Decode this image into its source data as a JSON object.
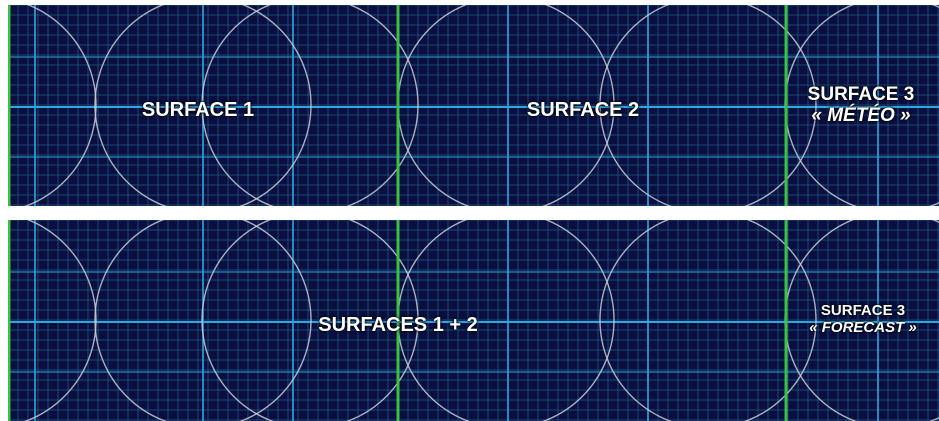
{
  "top_panel": {
    "labels": {
      "surface_1": "SURFACE 1",
      "surface_2": "SURFACE 2",
      "surface_3": "SURFACE 3",
      "surface_3_sub": "« MÉTÉO »"
    }
  },
  "bottom_panel": {
    "labels": {
      "surfaces_1_2": "SURFACES 1 + 2",
      "surface_3": "SURFACE 3",
      "surface_3_sub": "« FORECAST »"
    }
  },
  "colors": {
    "background": "#0b0f3f",
    "minor_grid": "#1c5a88",
    "major_grid": "#2fa7e0",
    "divider": "#39c23f",
    "circle": "#c8ccd6",
    "text": "#ffffff"
  }
}
